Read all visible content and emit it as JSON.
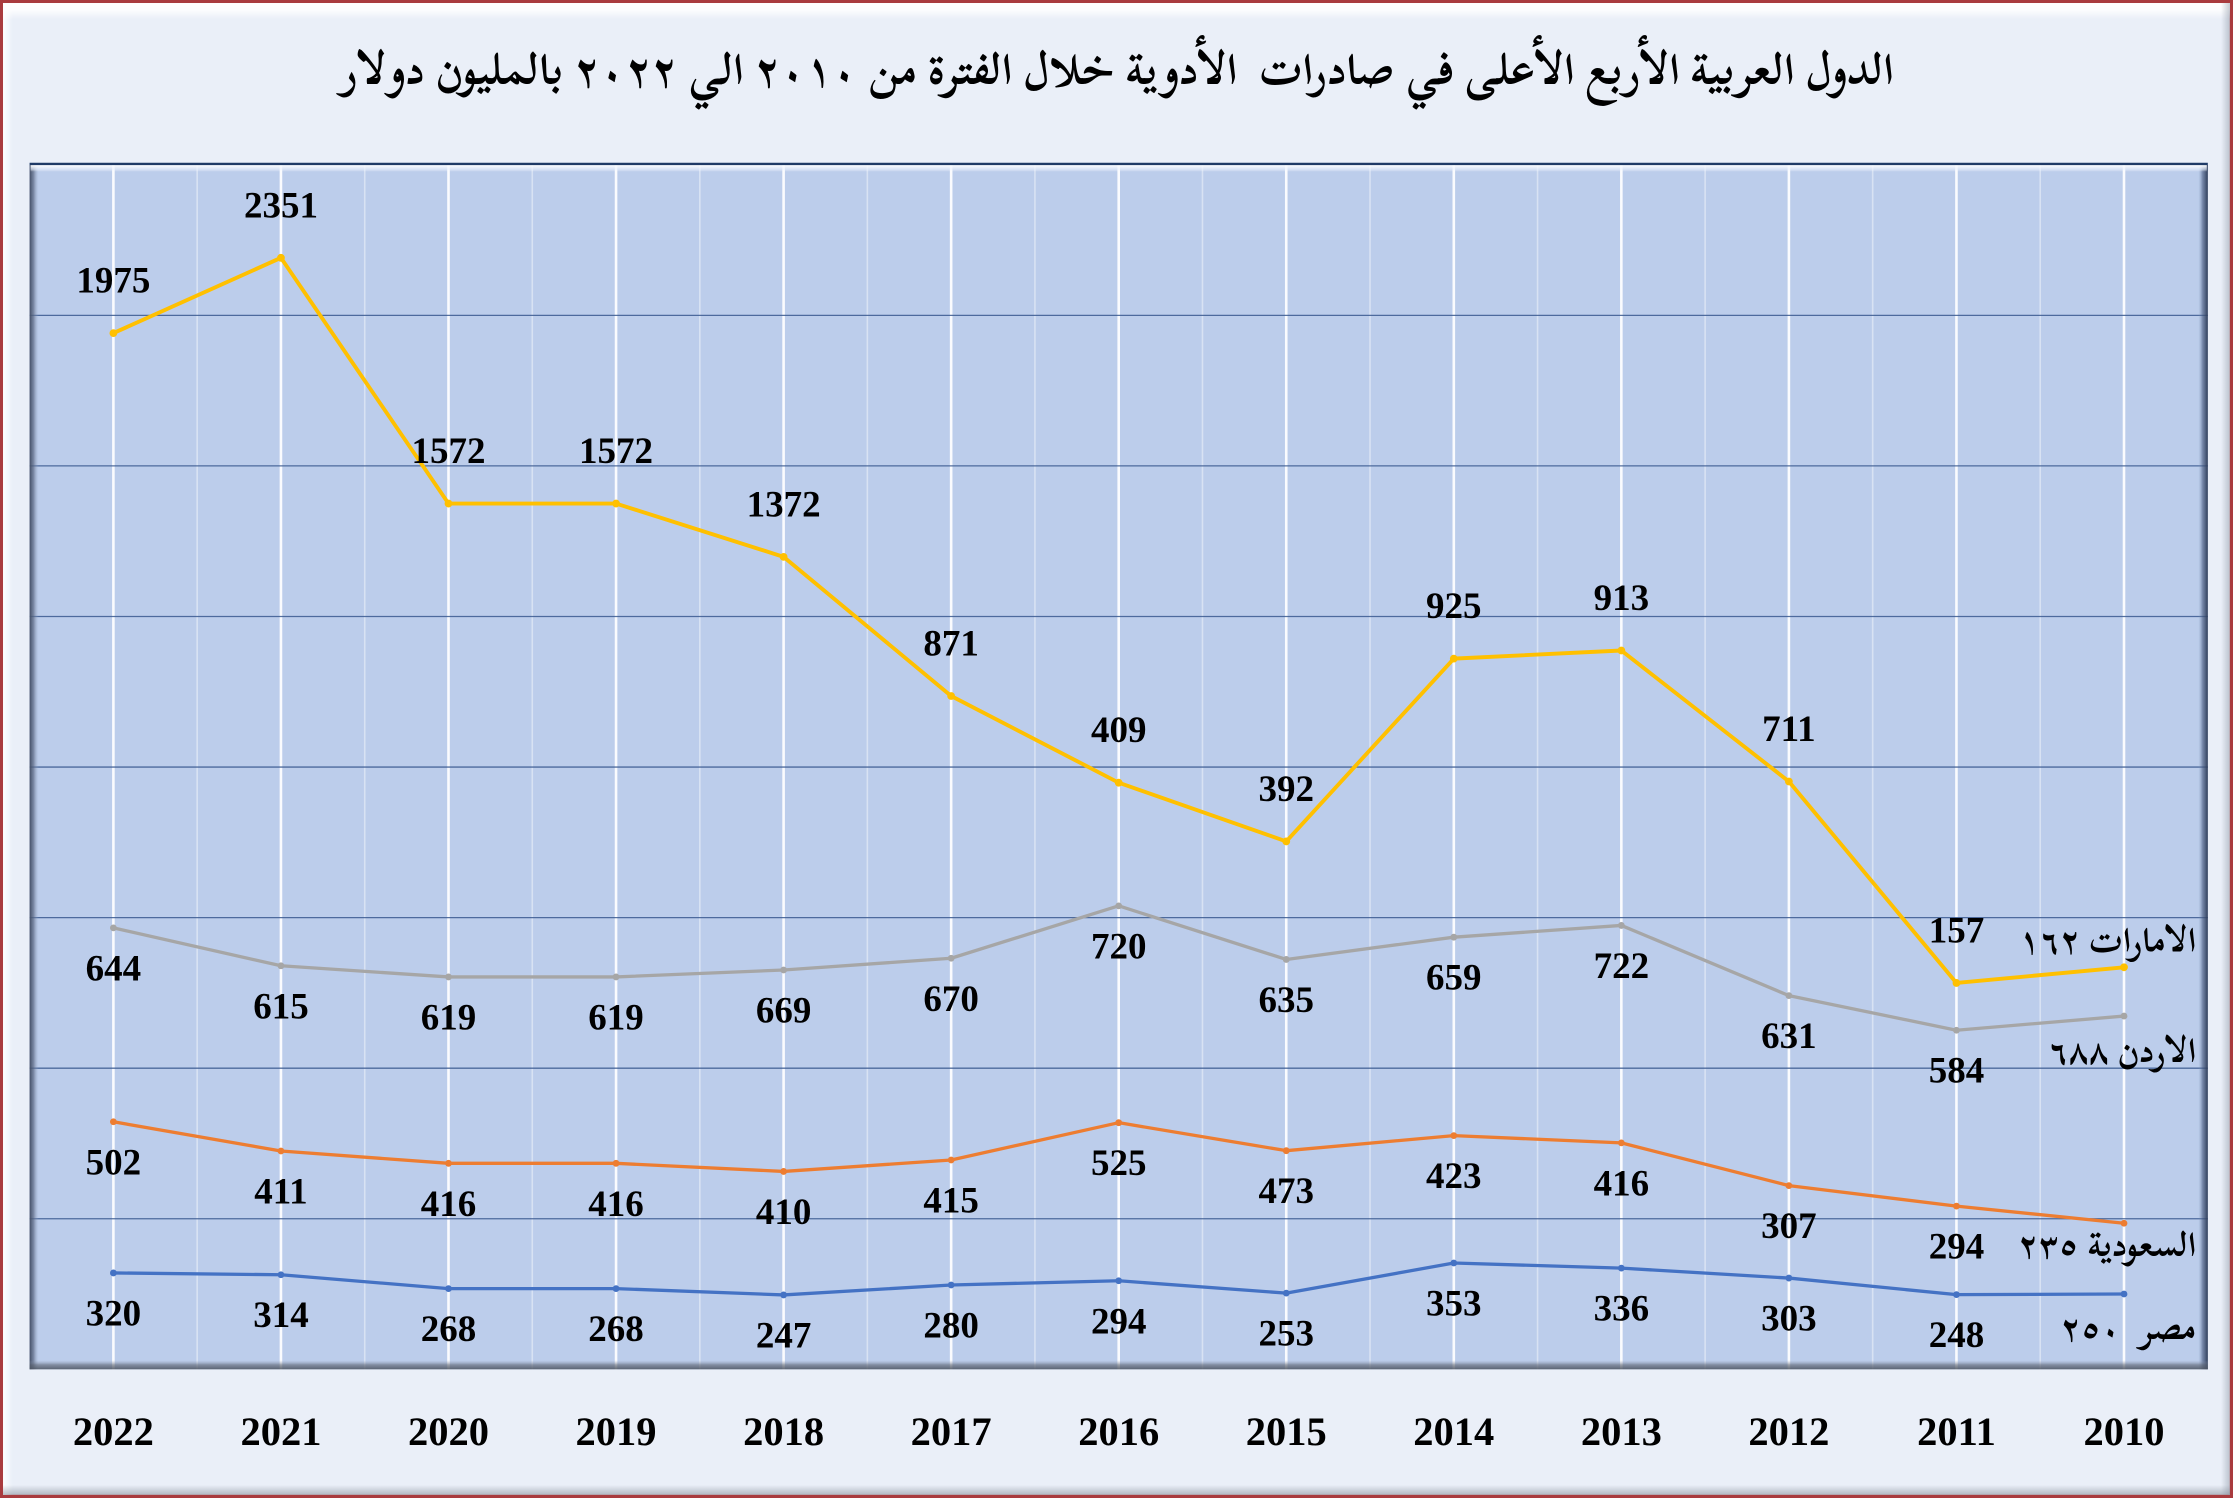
{
  "title": "الدول العربية الأربع الأعلى في صادرات  الأدوية خلال الفترة من ٢٠١٠ الي ٢٠٢٢ بالمليون دولار",
  "chart_data": {
    "type": "line",
    "stacked": true,
    "title": "الدول العربية الأربع الأعلى في صادرات الأدوية خلال الفترة من ٢٠١٠ الي ٢٠٢٢ بالمليون دولار",
    "unit": "مليون دولار",
    "categories": [
      "2022",
      "2021",
      "2020",
      "2019",
      "2018",
      "2017",
      "2016",
      "2015",
      "2014",
      "2013",
      "2012",
      "2011",
      "2010"
    ],
    "ylim": [
      0,
      4000
    ],
    "y_major_unit": 500,
    "grid": {
      "horizontal": true,
      "vertical_major": true,
      "vertical_minor": true
    },
    "legend_position": "series-end-labels",
    "series": [
      {
        "name": "مصر",
        "color": "#4472C4",
        "values": [
          320,
          314,
          268,
          268,
          247,
          280,
          294,
          253,
          353,
          336,
          303,
          248,
          250
        ],
        "point_labels": [
          "320",
          "314",
          "268",
          "268",
          "247",
          "280",
          "294",
          "253",
          "353",
          "336",
          "303",
          "248"
        ],
        "end_label": "مصر  ٢٥٠"
      },
      {
        "name": "السعودية",
        "color": "#ED7D31",
        "values": [
          502,
          411,
          416,
          416,
          410,
          415,
          525,
          473,
          423,
          416,
          307,
          294,
          235
        ],
        "point_labels": [
          "502",
          "411",
          "416",
          "416",
          "410",
          "415",
          "525",
          "473",
          "423",
          "416",
          "307",
          "294"
        ],
        "end_label": "السعودية ٢٣٥"
      },
      {
        "name": "الاردن",
        "color": "#A6A6A6",
        "values": [
          644,
          615,
          619,
          619,
          669,
          670,
          720,
          635,
          659,
          722,
          631,
          584,
          688
        ],
        "point_labels": [
          "644",
          "615",
          "619",
          "619",
          "669",
          "670",
          "720",
          "635",
          "659",
          "722",
          "631",
          "584"
        ],
        "end_label": "الاردن ٦٨٨"
      },
      {
        "name": "الامارات",
        "color": "#FFC000",
        "values": [
          1975,
          2351,
          1572,
          1572,
          1372,
          871,
          409,
          392,
          925,
          913,
          711,
          157,
          162
        ],
        "point_labels": [
          "1975",
          "2351",
          "1572",
          "1572",
          "1372",
          "871",
          "409",
          "392",
          "925",
          "913",
          "711",
          "157"
        ],
        "end_label": "الامارات ١٦٢"
      }
    ]
  },
  "colors": {
    "page_background": "#EAEFF8",
    "plot_background": "#BCCDEB",
    "outer_border": "#AD3A3E",
    "h_gridline": "#3D5C92",
    "plot_top_border": "#1F3A66",
    "v_gridline": "#FFFFFF",
    "label_text": "#000000"
  }
}
